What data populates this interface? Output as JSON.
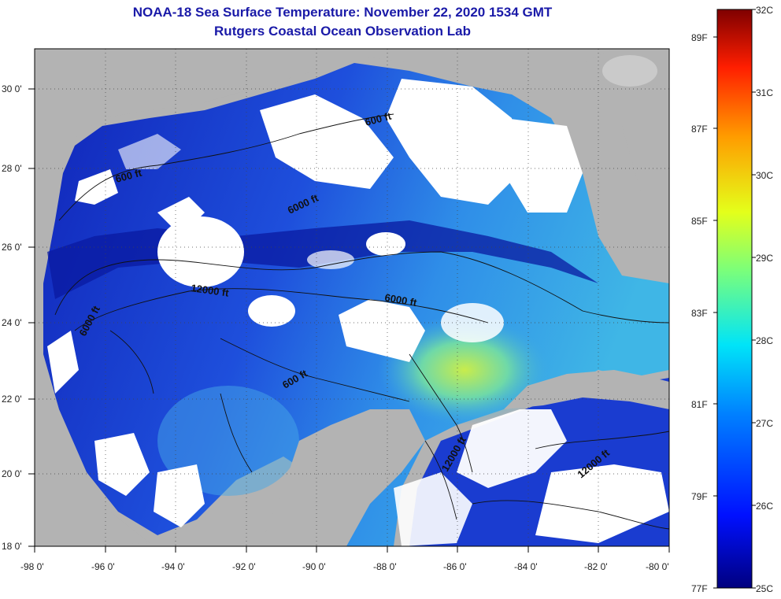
{
  "header": {
    "title": "NOAA-18 Sea Surface Temperature:  November 22, 2020 1534 GMT",
    "subtitle": "Rutgers Coastal Ocean Observation Lab"
  },
  "map": {
    "lon_range": [
      -98,
      -80
    ],
    "lat_range": [
      18,
      31
    ],
    "lon_ticks": [
      "-98 0'",
      "-96 0'",
      "-94 0'",
      "-92 0'",
      "-90 0'",
      "-88 0'",
      "-86 0'",
      "-84 0'",
      "-82 0'",
      "-80 0'"
    ],
    "lat_ticks": [
      "18 0'",
      "20 0'",
      "22 0'",
      "24 0'",
      "26 0'",
      "28 0'",
      "30 0'"
    ],
    "contour_labels": [
      "600 ft",
      "600 ft",
      "6000 ft",
      "12000 ft",
      "6000 ft",
      "6000 ft",
      "600 ft",
      "12000 ft",
      "12000 ft"
    ],
    "colors": {
      "land": "#b3b3b3",
      "cloud": "#ffffff",
      "cold": "#0a1aa0",
      "warm": "#b6e85a"
    }
  },
  "colorbar": {
    "celsius": [
      "32C",
      "31C",
      "30C",
      "29C",
      "28C",
      "27C",
      "26C",
      "25C"
    ],
    "fahrenheit": [
      "89F",
      "87F",
      "85F",
      "83F",
      "81F",
      "79F",
      "77F"
    ]
  }
}
